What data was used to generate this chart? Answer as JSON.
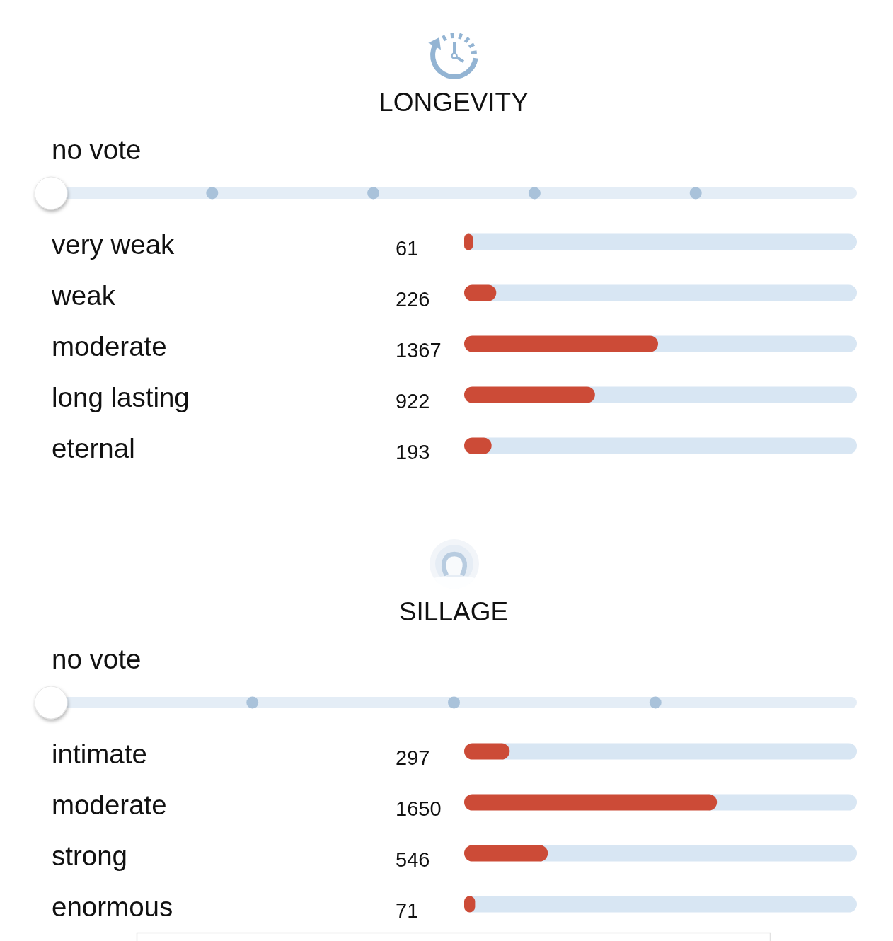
{
  "chart_data": [
    {
      "type": "bar",
      "orientation": "horizontal",
      "title": "LONGEVITY",
      "annotations": [
        "no vote"
      ],
      "categories": [
        "very weak",
        "weak",
        "moderate",
        "long lasting",
        "eternal"
      ],
      "values": [
        61,
        226,
        1367,
        922,
        193
      ],
      "color": "#cc4b37",
      "data_labels": true,
      "tick_labels": "y"
    },
    {
      "type": "bar",
      "orientation": "horizontal",
      "title": "SILLAGE",
      "annotations": [
        "no vote"
      ],
      "categories": [
        "intimate",
        "moderate",
        "strong",
        "enormous"
      ],
      "values": [
        297,
        1650,
        546,
        71
      ],
      "color": "#cc4b37",
      "data_labels": true,
      "tick_labels": "y"
    }
  ]
}
